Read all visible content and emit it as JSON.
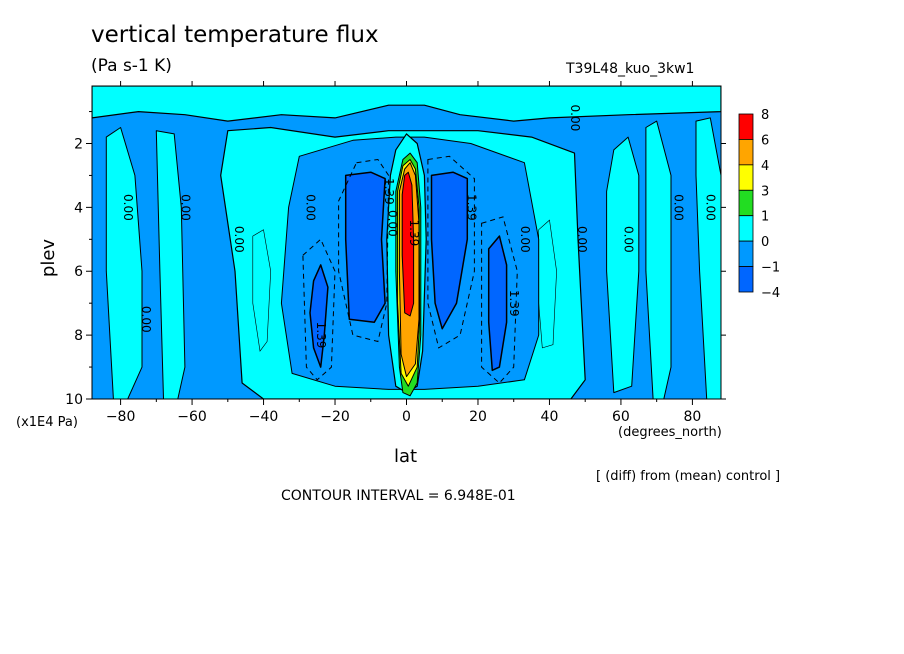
{
  "header": {
    "title": "vertical temperature flux",
    "units": "(Pa s-1 K)",
    "run": "T39L48_kuo_3kw1"
  },
  "footer": {
    "y_unit": "(x1E4 Pa)",
    "x_unit": "(degrees_north)",
    "xlabel": "lat",
    "diff_note": "[ (diff) from (mean) control ]",
    "contour_interval": "CONTOUR INTERVAL = 6.948E-01"
  },
  "colors": {
    "lt_cyan": "#00ffff",
    "mid_blue": "#0099ff",
    "dk_blue": "#0066ff",
    "green": "#22dd22",
    "yellow": "#ffff00",
    "orange": "#ffa500",
    "red": "#ff0000"
  },
  "chart_data": {
    "type": "heatmap",
    "subtype": "filled contour",
    "title": "vertical temperature flux",
    "units": "(Pa s-1 K)",
    "xlabel": "lat",
    "ylabel": "plev",
    "x_unit": "(degrees_north)",
    "y_unit": "(x1E4 Pa)",
    "xlim": [
      -88,
      88
    ],
    "ylim": [
      10,
      0.2
    ],
    "x_ticks": [
      -80,
      -60,
      -40,
      -20,
      0,
      20,
      40,
      60,
      80
    ],
    "y_ticks": [
      2,
      4,
      6,
      8,
      10
    ],
    "legend": {
      "position": "right",
      "levels": [
        "8",
        "6",
        "4",
        "3",
        "1",
        "0",
        "-1",
        "-4"
      ],
      "colors": [
        "#ff0000",
        "#ffa500",
        "#ffff00",
        "#22dd22",
        "#00ffff",
        "#0099ff",
        "#0066ff"
      ]
    },
    "contour_labels": [
      {
        "text": "0.00",
        "lat": -79,
        "plev": 4.0
      },
      {
        "text": "0.00",
        "lat": -63,
        "plev": 4.0
      },
      {
        "text": "0.00",
        "lat": -48,
        "plev": 5.0
      },
      {
        "text": "0.00",
        "lat": -28,
        "plev": 4.0
      },
      {
        "text": "0.00",
        "lat": -74,
        "plev": 7.5
      },
      {
        "text": "1.39",
        "lat": -25,
        "plev": 8.0
      },
      {
        "text": "1.39",
        "lat": -6,
        "plev": 3.5
      },
      {
        "text": "0.00",
        "lat": -5,
        "plev": 4.5
      },
      {
        "text": "1.39",
        "lat": 1,
        "plev": 4.8
      },
      {
        "text": "1.39",
        "lat": 17,
        "plev": 4.0
      },
      {
        "text": "0.00",
        "lat": 32,
        "plev": 5.0
      },
      {
        "text": "1.39",
        "lat": 29,
        "plev": 7.0
      },
      {
        "text": "0.00",
        "lat": 46,
        "plev": 1.2
      },
      {
        "text": "0.00",
        "lat": 48,
        "plev": 5.0
      },
      {
        "text": "0.00",
        "lat": 61,
        "plev": 5.0
      },
      {
        "text": "0.00",
        "lat": 75,
        "plev": 4.0
      },
      {
        "text": "0.00",
        "lat": 84,
        "plev": 4.0
      }
    ]
  }
}
